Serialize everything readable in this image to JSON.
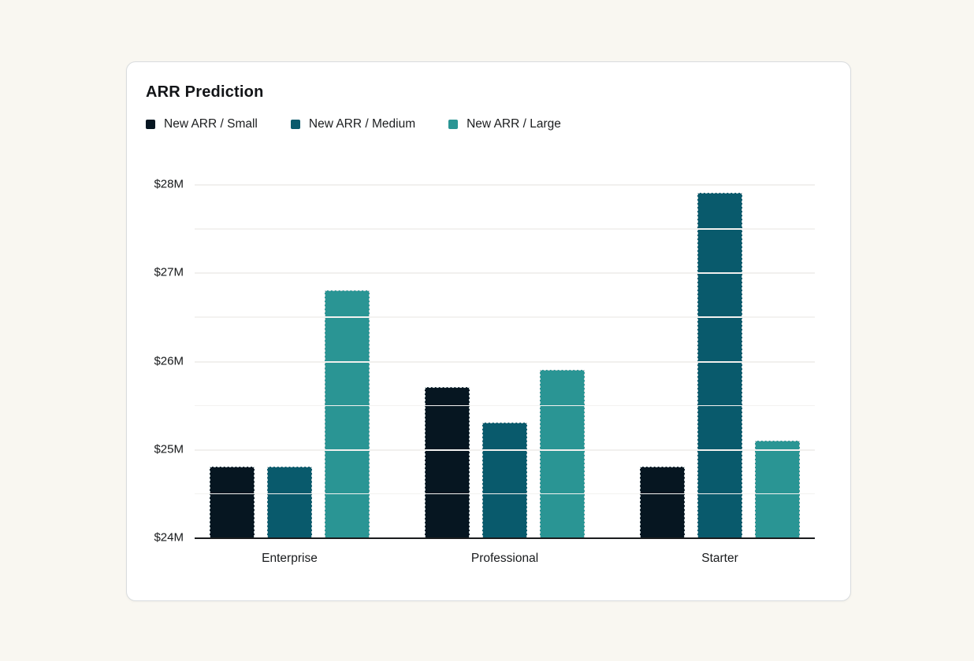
{
  "page": {
    "background": "#f9f7f1"
  },
  "card": {
    "background": "#ffffff",
    "border_color": "#d9dcde"
  },
  "chart_data": {
    "type": "bar",
    "title": "ARR Prediction",
    "categories": [
      "Enterprise",
      "Professional",
      "Starter"
    ],
    "series": [
      {
        "name": "New ARR / Small",
        "color": "#061621",
        "values": [
          24.8,
          25.7,
          24.8
        ]
      },
      {
        "name": "New ARR / Medium",
        "color": "#095a6c",
        "values": [
          24.8,
          25.3,
          27.9
        ]
      },
      {
        "name": "New ARR / Large",
        "color": "#2a9594",
        "values": [
          26.8,
          25.9,
          25.1
        ]
      }
    ],
    "ylim": [
      24,
      28
    ],
    "yticks": [
      24,
      25,
      26,
      27,
      28
    ],
    "ytick_labels": [
      "$24M",
      "$25M",
      "$26M",
      "$27M",
      "$28M"
    ],
    "xlabel": "",
    "ylabel": "",
    "grid": "horizontal",
    "legend_position": "top-left",
    "bar_style": "dashed-outline",
    "axis_line_color": "#1a1c1e",
    "gridline_color": "#f1f0ee"
  }
}
